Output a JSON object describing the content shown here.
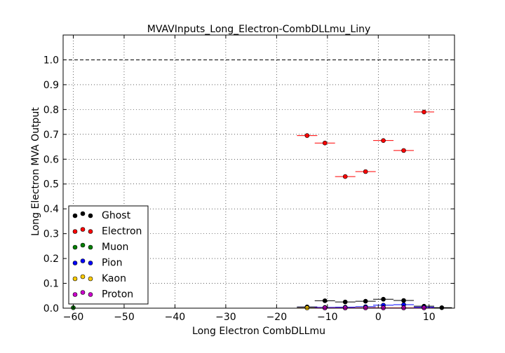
{
  "chart_data": {
    "type": "scatter",
    "title": "MVAVInputs_Long_Electron-CombDLLmu_Liny",
    "xlabel": "Long Electron CombDLLmu",
    "ylabel": "Long Electron MVA Output",
    "xlim": [
      -62,
      15
    ],
    "ylim": [
      0,
      1.1
    ],
    "xticks": [
      -60,
      -50,
      -40,
      -30,
      -20,
      -10,
      0,
      10
    ],
    "xtick_labels": [
      "−60",
      "−50",
      "−40",
      "−30",
      "−20",
      "−10",
      "0",
      "10"
    ],
    "yticks": [
      0.0,
      0.1,
      0.2,
      0.3,
      0.4,
      0.5,
      0.6,
      0.7,
      0.8,
      0.9,
      1.0
    ],
    "ytick_labels": [
      "0.0",
      "0.1",
      "0.2",
      "0.3",
      "0.4",
      "0.5",
      "0.6",
      "0.7",
      "0.8",
      "0.9",
      "1.0"
    ],
    "grid": true,
    "reference_line": {
      "y": 1.0,
      "style": "dashed",
      "color": "#000000"
    },
    "legend_position": "lower-left",
    "series": [
      {
        "name": "Ghost",
        "color": "#000000",
        "points": [
          {
            "x": -14,
            "y": 0.005,
            "xerr": 2
          },
          {
            "x": -10.5,
            "y": 0.03,
            "xerr": 2
          },
          {
            "x": -6.5,
            "y": 0.025,
            "xerr": 2
          },
          {
            "x": -2.5,
            "y": 0.028,
            "xerr": 2
          },
          {
            "x": 1,
            "y": 0.036,
            "xerr": 2
          },
          {
            "x": 5,
            "y": 0.031,
            "xerr": 2
          },
          {
            "x": 9,
            "y": 0.008,
            "xerr": 2
          },
          {
            "x": 12.5,
            "y": 0.002,
            "xerr": 2
          }
        ]
      },
      {
        "name": "Electron",
        "color": "#ff0000",
        "points": [
          {
            "x": -14,
            "y": 0.695,
            "xerr": 2
          },
          {
            "x": -10.5,
            "y": 0.665,
            "xerr": 2
          },
          {
            "x": -6.5,
            "y": 0.53,
            "xerr": 2
          },
          {
            "x": -2.5,
            "y": 0.55,
            "xerr": 2
          },
          {
            "x": 1,
            "y": 0.675,
            "xerr": 2
          },
          {
            "x": 5,
            "y": 0.635,
            "xerr": 2
          },
          {
            "x": 9,
            "y": 0.79,
            "xerr": 2
          }
        ]
      },
      {
        "name": "Muon",
        "color": "#008000",
        "points": [
          {
            "x": -60,
            "y": 0.002,
            "xerr": 0
          }
        ]
      },
      {
        "name": "Pion",
        "color": "#0000ff",
        "points": [
          {
            "x": -14,
            "y": 0.002,
            "xerr": 2
          },
          {
            "x": -10.5,
            "y": 0.003,
            "xerr": 2
          },
          {
            "x": -6.5,
            "y": 0.004,
            "xerr": 2
          },
          {
            "x": -2.5,
            "y": 0.006,
            "xerr": 2
          },
          {
            "x": 1,
            "y": 0.012,
            "xerr": 2
          },
          {
            "x": 5,
            "y": 0.014,
            "xerr": 2
          },
          {
            "x": 9,
            "y": 0.004,
            "xerr": 2
          }
        ]
      },
      {
        "name": "Kaon",
        "color": "#ffcc00",
        "points": [
          {
            "x": -14,
            "y": 0.001,
            "xerr": 2
          },
          {
            "x": -10.5,
            "y": 0.001,
            "xerr": 2
          },
          {
            "x": -6.5,
            "y": 0.001,
            "xerr": 2
          },
          {
            "x": -2.5,
            "y": 0.002,
            "xerr": 2
          },
          {
            "x": 1,
            "y": 0.002,
            "xerr": 2
          },
          {
            "x": 5,
            "y": 0.002,
            "xerr": 2
          }
        ]
      },
      {
        "name": "Proton",
        "color": "#cc00cc",
        "points": [
          {
            "x": -10.5,
            "y": 0.001,
            "xerr": 2
          },
          {
            "x": -6.5,
            "y": 0.001,
            "xerr": 2
          },
          {
            "x": -2.5,
            "y": 0.001,
            "xerr": 2
          },
          {
            "x": 1,
            "y": 0.001,
            "xerr": 2
          },
          {
            "x": 5,
            "y": 0.001,
            "xerr": 2
          },
          {
            "x": 9,
            "y": 0.001,
            "xerr": 2
          }
        ]
      }
    ]
  }
}
